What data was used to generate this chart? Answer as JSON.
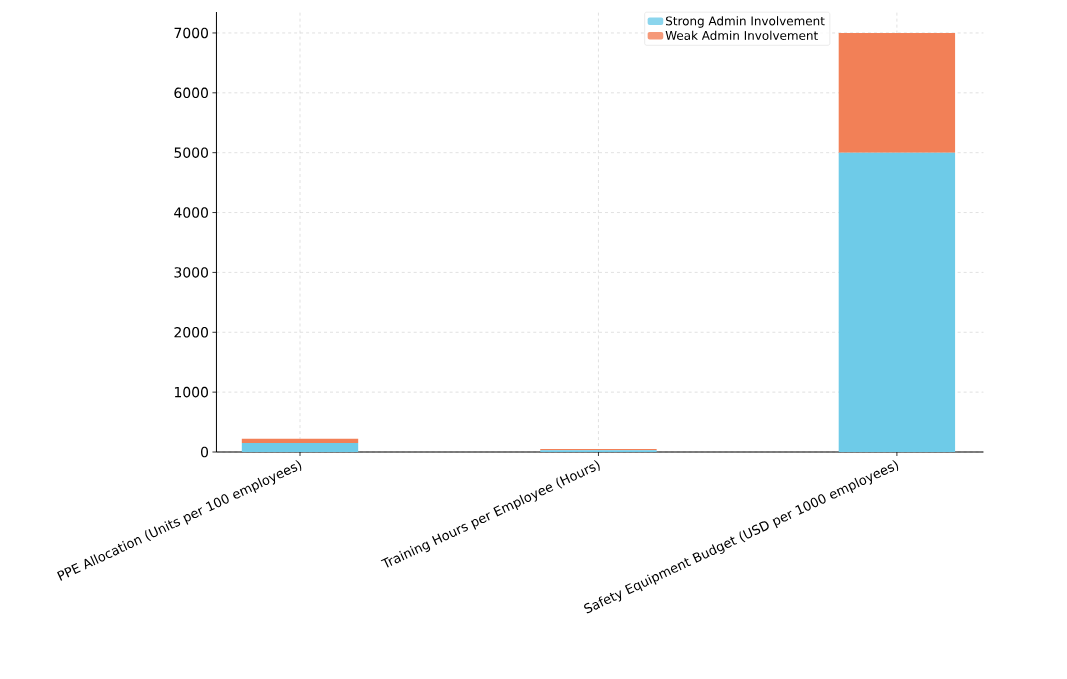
{
  "chart_data": {
    "type": "bar",
    "stacked": true,
    "categories": [
      "PPE Allocation (Units per 100 employees)",
      "Training Hours per Employee (Hours)",
      "Safety Equipment Budget (USD per 1000 employees)"
    ],
    "series": [
      {
        "name": "Strong Admin Involvement",
        "color": "#6ecbe8",
        "values": [
          150,
          30,
          5000
        ]
      },
      {
        "name": "Weak Admin Involvement",
        "color": "#f28057",
        "values": [
          70,
          20,
          2000
        ]
      }
    ],
    "ylim": [
      0,
      7350
    ],
    "yticks": [
      0,
      1000,
      2000,
      3000,
      4000,
      5000,
      6000,
      7000
    ],
    "grid": true,
    "legend": "top right"
  }
}
